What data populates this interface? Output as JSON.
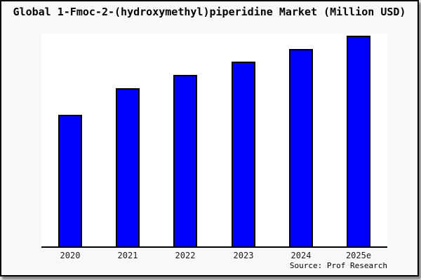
{
  "chart": {
    "title": "Global 1-Fmoc-2-(hydroxymethyl)piperidine Market (Million USD)",
    "source": "Source: Prof Research"
  },
  "chart_data": {
    "type": "bar",
    "title": "Global 1-Fmoc-2-(hydroxymethyl)piperidine Market (Million USD)",
    "categories": [
      "2020",
      "2021",
      "2022",
      "2023",
      "2024",
      "2025e"
    ],
    "values": [
      62.5,
      75.1,
      81.5,
      87.7,
      93.6,
      100
    ],
    "xlabel": "",
    "ylabel": "",
    "ylim": [
      0,
      101
    ],
    "grid": false,
    "legend": false,
    "y_axis_labels_visible": false,
    "bar_color": "#0000ff",
    "bar_border_color": "#000000",
    "background": "#f8f8f8",
    "plot_background": "#ffffff",
    "annotation": "Source: Prof Research"
  }
}
